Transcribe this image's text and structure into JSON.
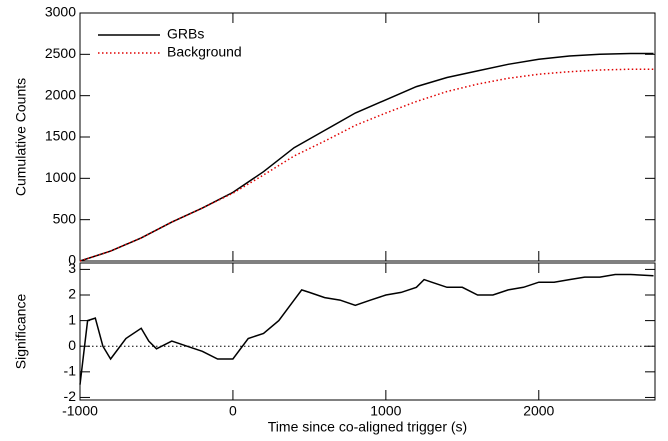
{
  "chart_data": [
    {
      "type": "line",
      "ylabel": "Cumulative Counts",
      "legend": "upper left",
      "x": [
        -1000,
        -800,
        -600,
        -400,
        -200,
        0,
        200,
        400,
        600,
        800,
        1000,
        1200,
        1400,
        1600,
        1800,
        2000,
        2200,
        2400,
        2600,
        2750
      ],
      "series": [
        {
          "name": "GRBs",
          "color": "#000000",
          "dash": false,
          "values": [
            0,
            120,
            280,
            470,
            640,
            830,
            1080,
            1370,
            1580,
            1790,
            1950,
            2110,
            2220,
            2300,
            2380,
            2440,
            2480,
            2500,
            2510,
            2510
          ]
        },
        {
          "name": "Background",
          "color": "#e00000",
          "dash": true,
          "values": [
            0,
            120,
            280,
            470,
            640,
            820,
            1040,
            1270,
            1450,
            1640,
            1790,
            1930,
            2050,
            2140,
            2210,
            2260,
            2290,
            2310,
            2320,
            2320
          ]
        }
      ],
      "ylim": [
        0,
        3000
      ],
      "yticks": [
        0,
        500,
        1000,
        1500,
        2000,
        2500,
        3000
      ]
    },
    {
      "type": "line",
      "ylabel": "Significance",
      "xlabel": "Time since co-aligned trigger (s)",
      "x": [
        -1000,
        -950,
        -900,
        -850,
        -800,
        -700,
        -600,
        -550,
        -500,
        -400,
        -300,
        -200,
        -100,
        0,
        100,
        200,
        300,
        400,
        450,
        500,
        600,
        700,
        800,
        900,
        1000,
        1100,
        1200,
        1250,
        1300,
        1400,
        1500,
        1600,
        1700,
        1800,
        1900,
        2000,
        2100,
        2200,
        2300,
        2400,
        2500,
        2600,
        2750
      ],
      "values": [
        -1.5,
        1.0,
        1.1,
        0,
        -0.5,
        0.3,
        0.7,
        0.2,
        -0.1,
        0.2,
        0,
        -0.2,
        -0.5,
        -0.5,
        0.3,
        0.5,
        1.0,
        1.8,
        2.2,
        2.1,
        1.9,
        1.8,
        1.6,
        1.8,
        2.0,
        2.1,
        2.3,
        2.6,
        2.5,
        2.3,
        2.3,
        2.0,
        2.0,
        2.2,
        2.3,
        2.5,
        2.5,
        2.6,
        2.7,
        2.7,
        2.8,
        2.8,
        2.75
      ],
      "color": "#000000",
      "hline": 0,
      "xlim": [
        -1000,
        2760
      ],
      "xticks": [
        -1000,
        0,
        1000,
        2000
      ],
      "ylim": [
        -2.1,
        3.25
      ],
      "yticks": [
        -2,
        -1,
        0,
        1,
        2,
        3
      ]
    }
  ]
}
